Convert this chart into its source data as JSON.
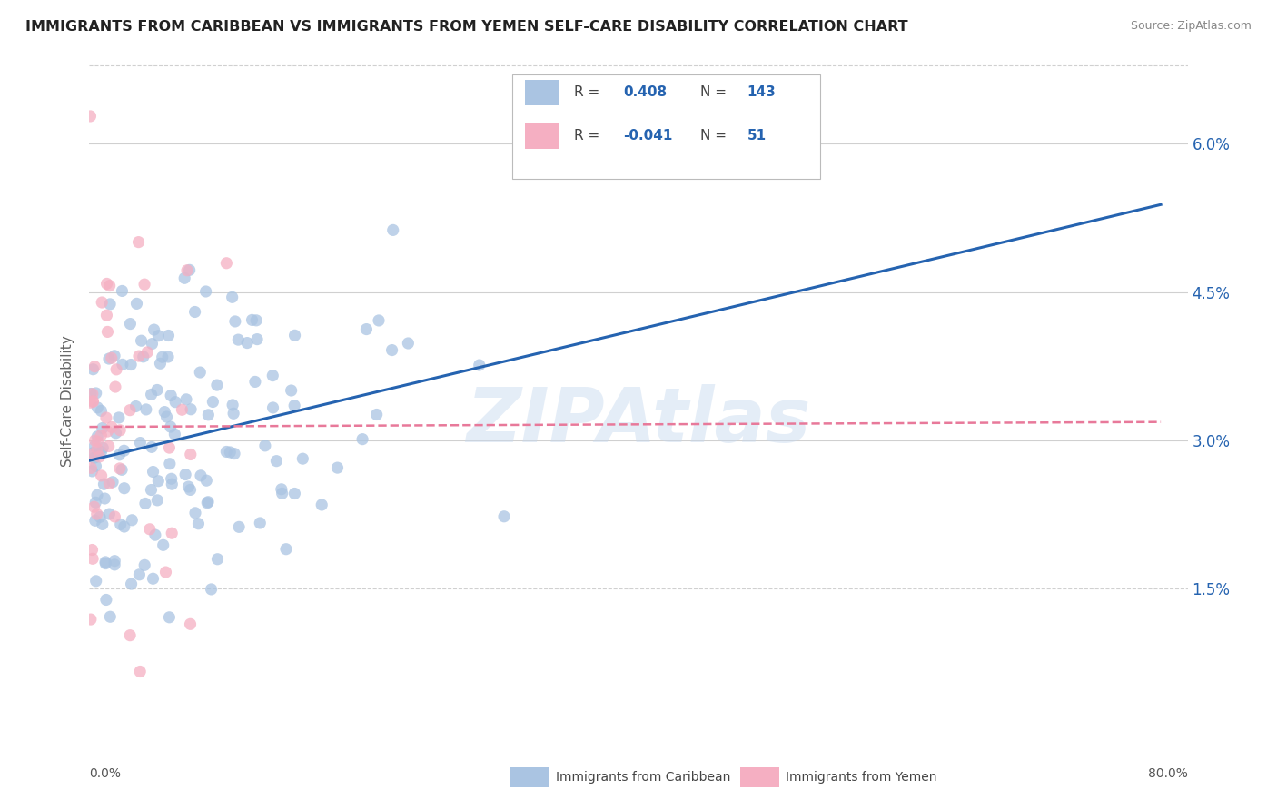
{
  "title": "IMMIGRANTS FROM CARIBBEAN VS IMMIGRANTS FROM YEMEN SELF-CARE DISABILITY CORRELATION CHART",
  "source": "Source: ZipAtlas.com",
  "ylabel": "Self-Care Disability",
  "yticks_labels": [
    "1.5%",
    "3.0%",
    "4.5%",
    "6.0%"
  ],
  "ytick_vals": [
    0.015,
    0.03,
    0.045,
    0.06
  ],
  "legend_caribbean": "Immigrants from Caribbean",
  "legend_yemen": "Immigrants from Yemen",
  "R_caribbean": 0.408,
  "N_caribbean": 143,
  "R_yemen": -0.041,
  "N_yemen": 51,
  "color_caribbean": "#aac4e2",
  "color_yemen": "#f5afc2",
  "color_line_caribbean": "#2563b0",
  "color_line_yemen": "#e8799a",
  "color_text_blue": "#2563b0",
  "background_color": "#ffffff",
  "watermark": "ZIPAtlas",
  "xlim": [
    0.0,
    0.82
  ],
  "ylim": [
    0.0,
    0.068
  ],
  "grid_color": "#d0d0d0",
  "bottom_gridline_y": 0.015,
  "bottom_gridline_style": "--"
}
